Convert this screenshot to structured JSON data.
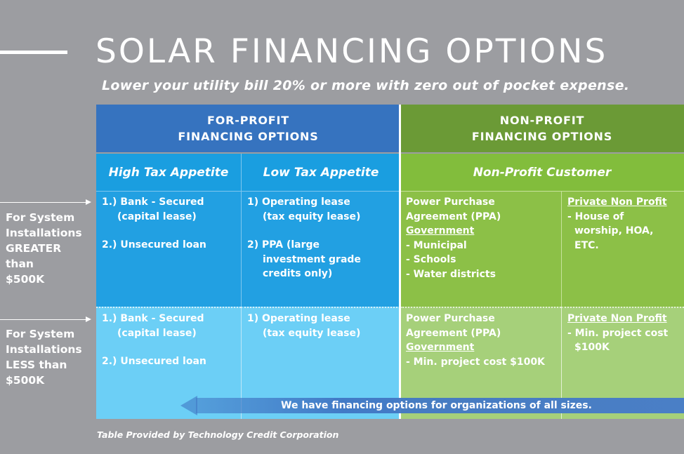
{
  "header": {
    "title": "SOLAR FINANCING OPTIONS",
    "subtitle": "Lower your utility bill 20% or more with zero out of pocket expense."
  },
  "columns": {
    "for_profit": {
      "heading_line1": "FOR-PROFIT",
      "heading_line2": "FINANCING OPTIONS",
      "high_tax": "High Tax Appetite",
      "low_tax": "Low Tax Appetite"
    },
    "non_profit": {
      "heading_line1": "NON-PROFIT",
      "heading_line2": "FINANCING OPTIONS",
      "customer": "Non-Profit Customer"
    }
  },
  "rows": {
    "greater": {
      "label_lines": [
        "For System",
        "Installations",
        "GREATER",
        "than",
        "$500K"
      ],
      "high_tax": {
        "item1_a": "1.) Bank - Secured",
        "item1_b": "(capital lease)",
        "item2": "2.) Unsecured loan"
      },
      "low_tax": {
        "item1_a": "1) Operating lease",
        "item1_b": "(tax equity lease)",
        "item2_a": "2) PPA (large",
        "item2_b": "investment grade",
        "item2_c": "credits only)"
      },
      "nonprofit": {
        "ppa_a": "Power Purchase",
        "ppa_b": "Agreement (PPA)",
        "gov": "Government",
        "b1": "- Municipal",
        "b2": "- Schools",
        "b3": "- Water districts"
      },
      "private": {
        "head": "Private Non Profit",
        "b1_a": "- House of",
        "b1_b": "worship, HOA,",
        "b1_c": "ETC."
      }
    },
    "less": {
      "label_lines": [
        "For System",
        "Installations",
        "LESS than",
        "$500K"
      ],
      "high_tax": {
        "item1_a": "1.) Bank - Secured",
        "item1_b": "(capital lease)",
        "item2": "2.) Unsecured loan"
      },
      "low_tax": {
        "item1_a": "1) Operating lease",
        "item1_b": "(tax equity lease)"
      },
      "nonprofit": {
        "ppa_a": "Power Purchase",
        "ppa_b": "Agreement (PPA)",
        "gov": "Government",
        "b1": "- Min. project cost $100K"
      },
      "private": {
        "head": "Private Non Profit",
        "b1_a": "- Min. project cost",
        "b1_b": "$100K"
      }
    }
  },
  "banner": "We have financing options for organizations of all sizes.",
  "footer": "Table Provided by Technology Credit Corporation",
  "colors": {
    "background": "#9c9da1",
    "for_profit_header": "#3673bf",
    "non_profit_header": "#6b9a36",
    "blue_cell": "#22a0e2",
    "light_blue_cell": "#6ccff6",
    "green_cell": "#8cc047",
    "light_green_cell": "#a6d07a"
  }
}
